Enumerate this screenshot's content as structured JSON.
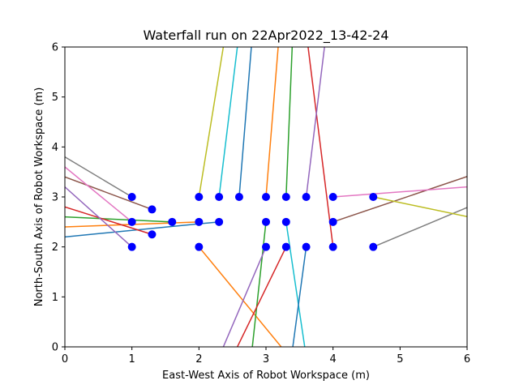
{
  "chart_data": {
    "type": "line",
    "title": "Waterfall run on 22Apr2022_13-42-24",
    "xlabel": "East-West Axis of Robot Workspace (m)",
    "ylabel": "North-South Axis of Robot Workspace (m)",
    "xlim": [
      0,
      6
    ],
    "ylim": [
      0,
      6
    ],
    "xticks": [
      "0",
      "1",
      "2",
      "3",
      "4",
      "5",
      "6"
    ],
    "yticks": [
      "0",
      "1",
      "2",
      "3",
      "4",
      "5",
      "6"
    ],
    "grid": false,
    "legend": "none",
    "marker_color": "#0000ff",
    "series": [
      {
        "color": "#1f77b4",
        "points": [
          [
            0,
            2.2
          ],
          [
            2.3,
            2.5
          ]
        ]
      },
      {
        "color": "#ff7f0e",
        "points": [
          [
            0,
            2.4
          ],
          [
            2.0,
            2.5
          ]
        ]
      },
      {
        "color": "#2ca02c",
        "points": [
          [
            0,
            2.6
          ],
          [
            1.6,
            2.5
          ]
        ]
      },
      {
        "color": "#d62728",
        "points": [
          [
            0,
            2.8
          ],
          [
            1.3,
            2.25
          ]
        ]
      },
      {
        "color": "#9467bd",
        "points": [
          [
            0,
            3.2
          ],
          [
            1.0,
            2.0
          ]
        ]
      },
      {
        "color": "#8c564b",
        "points": [
          [
            0,
            3.4
          ],
          [
            1.3,
            2.75
          ]
        ]
      },
      {
        "color": "#e377c2",
        "points": [
          [
            0,
            3.6
          ],
          [
            1.0,
            2.5
          ]
        ]
      },
      {
        "color": "#7f7f7f",
        "points": [
          [
            0,
            3.8
          ],
          [
            1.0,
            3.0
          ]
        ]
      },
      {
        "color": "#bcbd22",
        "points": [
          [
            2.0,
            3.0
          ],
          [
            2.4,
            6.3
          ]
        ]
      },
      {
        "color": "#17becf",
        "points": [
          [
            2.3,
            3.0
          ],
          [
            2.6,
            6.3
          ]
        ]
      },
      {
        "color": "#1f77b4",
        "points": [
          [
            2.6,
            3.0
          ],
          [
            2.8,
            6.3
          ]
        ]
      },
      {
        "color": "#ff7f0e",
        "points": [
          [
            3.0,
            3.0
          ],
          [
            3.2,
            6.3
          ]
        ]
      },
      {
        "color": "#2ca02c",
        "points": [
          [
            3.3,
            3.0
          ],
          [
            3.4,
            6.3
          ]
        ]
      },
      {
        "color": "#d62728",
        "points": [
          [
            3.6,
            6.3
          ],
          [
            4.0,
            2.0
          ]
        ]
      },
      {
        "color": "#9467bd",
        "points": [
          [
            3.6,
            3.0
          ],
          [
            3.9,
            6.3
          ]
        ]
      },
      {
        "color": "#8c564b",
        "points": [
          [
            4.0,
            2.5
          ],
          [
            6.2,
            3.5
          ]
        ]
      },
      {
        "color": "#e377c2",
        "points": [
          [
            4.0,
            3.0
          ],
          [
            6.2,
            3.22
          ]
        ]
      },
      {
        "color": "#7f7f7f",
        "points": [
          [
            4.6,
            2.0
          ],
          [
            6.2,
            2.9
          ]
        ]
      },
      {
        "color": "#bcbd22",
        "points": [
          [
            4.6,
            3.0
          ],
          [
            6.2,
            2.55
          ]
        ]
      },
      {
        "color": "#17becf",
        "points": [
          [
            3.3,
            2.5
          ],
          [
            3.6,
            -0.2
          ]
        ]
      },
      {
        "color": "#1f77b4",
        "points": [
          [
            3.6,
            2.0
          ],
          [
            3.38,
            -0.2
          ]
        ]
      },
      {
        "color": "#ff7f0e",
        "points": [
          [
            2.0,
            2.0
          ],
          [
            3.35,
            -0.2
          ]
        ]
      },
      {
        "color": "#2ca02c",
        "points": [
          [
            3.0,
            2.5
          ],
          [
            2.78,
            -0.2
          ]
        ]
      },
      {
        "color": "#d62728",
        "points": [
          [
            3.3,
            2.0
          ],
          [
            2.5,
            -0.2
          ]
        ]
      },
      {
        "color": "#9467bd",
        "points": [
          [
            3.0,
            2.0
          ],
          [
            2.3,
            -0.2
          ]
        ]
      }
    ],
    "markers": [
      [
        1.0,
        3.0
      ],
      [
        1.3,
        2.75
      ],
      [
        1.0,
        2.5
      ],
      [
        1.6,
        2.5
      ],
      [
        1.3,
        2.25
      ],
      [
        1.0,
        2.0
      ],
      [
        2.0,
        3.0
      ],
      [
        2.3,
        3.0
      ],
      [
        2.6,
        3.0
      ],
      [
        2.0,
        2.5
      ],
      [
        2.3,
        2.5
      ],
      [
        2.0,
        2.0
      ],
      [
        3.0,
        3.0
      ],
      [
        3.3,
        3.0
      ],
      [
        3.6,
        3.0
      ],
      [
        3.0,
        2.5
      ],
      [
        3.3,
        2.5
      ],
      [
        3.0,
        2.0
      ],
      [
        3.3,
        2.0
      ],
      [
        3.6,
        2.0
      ],
      [
        4.0,
        3.0
      ],
      [
        4.6,
        3.0
      ],
      [
        4.0,
        2.5
      ],
      [
        4.0,
        2.0
      ],
      [
        4.6,
        2.0
      ]
    ]
  }
}
